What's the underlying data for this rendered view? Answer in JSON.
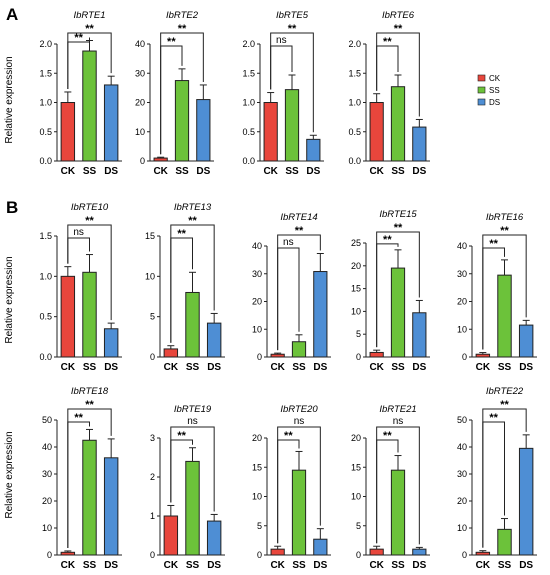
{
  "labels": {
    "panel_a": "A",
    "panel_b": "B",
    "ylabel": "Relative expression"
  },
  "legend": [
    {
      "label": "CK",
      "color": "#e8463c"
    },
    {
      "label": "SS",
      "color": "#6cc23a"
    },
    {
      "label": "DS",
      "color": "#4e8ed4"
    }
  ],
  "chart_data": [
    {
      "type": "bar",
      "title": "IbRTE1",
      "categories": [
        "CK",
        "SS",
        "DS"
      ],
      "values": [
        1.0,
        1.88,
        1.3
      ],
      "errors": [
        0.18,
        0.18,
        0.15
      ],
      "ylim": [
        0,
        2.0
      ],
      "yticks": [
        "0.0",
        "0.5",
        "1.0",
        "1.5",
        "2.0"
      ],
      "significance": [
        {
          "from": "CK",
          "to": "SS",
          "label": "**"
        },
        {
          "from": "CK",
          "to": "DS",
          "label": "**"
        }
      ]
    },
    {
      "type": "bar",
      "title": "IbRTE2",
      "categories": [
        "CK",
        "SS",
        "DS"
      ],
      "values": [
        1.0,
        27.5,
        21.0
      ],
      "errors": [
        0.3,
        4.0,
        5.0
      ],
      "ylim": [
        0,
        40
      ],
      "yticks": [
        "0",
        "10",
        "20",
        "30",
        "40"
      ],
      "significance": [
        {
          "from": "CK",
          "to": "SS",
          "label": "**"
        },
        {
          "from": "CK",
          "to": "DS",
          "label": "**"
        }
      ]
    },
    {
      "type": "bar",
      "title": "IbRTE5",
      "categories": [
        "CK",
        "SS",
        "DS"
      ],
      "values": [
        1.0,
        1.22,
        0.37
      ],
      "errors": [
        0.17,
        0.25,
        0.07
      ],
      "ylim": [
        0,
        2.0
      ],
      "yticks": [
        "0.0",
        "0.5",
        "1.0",
        "1.5",
        "2.0"
      ],
      "significance": [
        {
          "from": "CK",
          "to": "SS",
          "label": "ns"
        },
        {
          "from": "CK",
          "to": "DS",
          "label": "**"
        }
      ]
    },
    {
      "type": "bar",
      "title": "IbRTE6",
      "categories": [
        "CK",
        "SS",
        "DS"
      ],
      "values": [
        1.0,
        1.27,
        0.58
      ],
      "errors": [
        0.15,
        0.2,
        0.13
      ],
      "ylim": [
        0,
        2.0
      ],
      "yticks": [
        "0.0",
        "0.5",
        "1.0",
        "1.5",
        "2.0"
      ],
      "significance": [
        {
          "from": "CK",
          "to": "SS",
          "label": "**"
        },
        {
          "from": "CK",
          "to": "DS",
          "label": "**"
        }
      ]
    },
    {
      "type": "bar",
      "title": "IbRTE10",
      "categories": [
        "CK",
        "SS",
        "DS"
      ],
      "values": [
        1.0,
        1.05,
        0.35
      ],
      "errors": [
        0.12,
        0.22,
        0.07
      ],
      "ylim": [
        0,
        1.5
      ],
      "yticks": [
        "0.0",
        "0.5",
        "1.0",
        "1.5"
      ],
      "significance": [
        {
          "from": "CK",
          "to": "SS",
          "label": "ns"
        },
        {
          "from": "CK",
          "to": "DS",
          "label": "**"
        }
      ]
    },
    {
      "type": "bar",
      "title": "IbRTE13",
      "categories": [
        "CK",
        "SS",
        "DS"
      ],
      "values": [
        1.0,
        8.0,
        4.2
      ],
      "errors": [
        0.4,
        2.5,
        1.2
      ],
      "ylim": [
        0,
        15
      ],
      "yticks": [
        "0",
        "5",
        "10",
        "15"
      ],
      "significance": [
        {
          "from": "CK",
          "to": "SS",
          "label": "**"
        },
        {
          "from": "CK",
          "to": "DS",
          "label": "**"
        }
      ]
    },
    {
      "type": "bar",
      "title": "IbRTE14",
      "categories": [
        "CK",
        "SS",
        "DS"
      ],
      "values": [
        1.0,
        5.5,
        30.8
      ],
      "errors": [
        0.4,
        2.5,
        6.5
      ],
      "ylim": [
        0,
        40
      ],
      "yticks": [
        "0",
        "10",
        "20",
        "30",
        "40"
      ],
      "significance": [
        {
          "from": "CK",
          "to": "SS",
          "label": "ns"
        },
        {
          "from": "CK",
          "to": "DS",
          "label": "**"
        }
      ]
    },
    {
      "type": "bar",
      "title": "IbRTE15",
      "categories": [
        "CK",
        "SS",
        "DS"
      ],
      "values": [
        1.0,
        19.5,
        9.7
      ],
      "errors": [
        0.5,
        4.0,
        2.7
      ],
      "ylim": [
        0,
        25
      ],
      "yticks": [
        "0",
        "5",
        "10",
        "15",
        "20",
        "25"
      ],
      "significance": [
        {
          "from": "CK",
          "to": "SS",
          "label": "**"
        },
        {
          "from": "CK",
          "to": "DS",
          "label": "**"
        }
      ]
    },
    {
      "type": "bar",
      "title": "IbRTE16",
      "categories": [
        "CK",
        "SS",
        "DS"
      ],
      "values": [
        1.0,
        29.5,
        11.5
      ],
      "errors": [
        0.6,
        5.5,
        1.7
      ],
      "ylim": [
        0,
        40
      ],
      "yticks": [
        "0",
        "10",
        "20",
        "30",
        "40"
      ],
      "significance": [
        {
          "from": "CK",
          "to": "SS",
          "label": "**"
        },
        {
          "from": "CK",
          "to": "DS",
          "label": "**"
        }
      ]
    },
    {
      "type": "bar",
      "title": "IbRTE18",
      "categories": [
        "CK",
        "SS",
        "DS"
      ],
      "values": [
        1.0,
        42.5,
        36.0
      ],
      "errors": [
        0.5,
        4.0,
        7.0
      ],
      "ylim": [
        0,
        50
      ],
      "yticks": [
        "0",
        "10",
        "20",
        "30",
        "40",
        "50"
      ],
      "significance": [
        {
          "from": "CK",
          "to": "SS",
          "label": "**"
        },
        {
          "from": "CK",
          "to": "DS",
          "label": "**"
        }
      ]
    },
    {
      "type": "bar",
      "title": "IbRTE19",
      "categories": [
        "CK",
        "SS",
        "DS"
      ],
      "values": [
        1.0,
        2.4,
        0.87
      ],
      "errors": [
        0.27,
        0.35,
        0.17
      ],
      "ylim": [
        0,
        3
      ],
      "yticks": [
        "0",
        "1",
        "2",
        "3"
      ],
      "significance": [
        {
          "from": "CK",
          "to": "SS",
          "label": "**"
        },
        {
          "from": "CK",
          "to": "DS",
          "label": "ns"
        }
      ]
    },
    {
      "type": "bar",
      "title": "IbRTE20",
      "categories": [
        "CK",
        "SS",
        "DS"
      ],
      "values": [
        1.0,
        14.5,
        2.7
      ],
      "errors": [
        0.5,
        3.2,
        1.8
      ],
      "ylim": [
        0,
        20
      ],
      "yticks": [
        "0",
        "5",
        "10",
        "15",
        "20"
      ],
      "significance": [
        {
          "from": "CK",
          "to": "SS",
          "label": "**"
        },
        {
          "from": "CK",
          "to": "DS",
          "label": "ns"
        }
      ]
    },
    {
      "type": "bar",
      "title": "IbRTE21",
      "categories": [
        "CK",
        "SS",
        "DS"
      ],
      "values": [
        1.0,
        14.5,
        1.0
      ],
      "errors": [
        0.5,
        2.5,
        0.3
      ],
      "ylim": [
        0,
        20
      ],
      "yticks": [
        "0",
        "5",
        "10",
        "15",
        "20"
      ],
      "significance": [
        {
          "from": "CK",
          "to": "SS",
          "label": "**"
        },
        {
          "from": "CK",
          "to": "DS",
          "label": "ns"
        }
      ]
    },
    {
      "type": "bar",
      "title": "IbRTE22",
      "categories": [
        "CK",
        "SS",
        "DS"
      ],
      "values": [
        1.0,
        9.5,
        39.5
      ],
      "errors": [
        0.6,
        4.0,
        5.0
      ],
      "ylim": [
        0,
        50
      ],
      "yticks": [
        "0",
        "10",
        "20",
        "30",
        "40",
        "50"
      ],
      "significance": [
        {
          "from": "CK",
          "to": "SS",
          "label": "**"
        },
        {
          "from": "CK",
          "to": "DS",
          "label": "**"
        }
      ]
    }
  ]
}
